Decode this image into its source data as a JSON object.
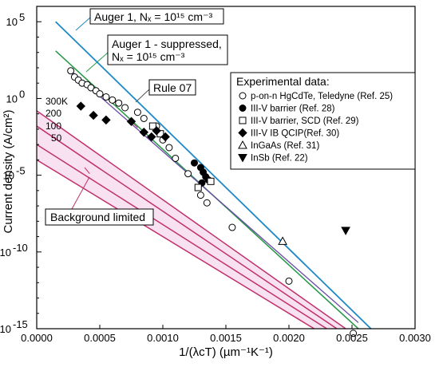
{
  "chart_data": {
    "type": "scatter",
    "xlabel": "1/(λcT) (µm⁻¹K⁻¹)",
    "ylabel": "Current density (A/cm²)",
    "xlim": [
      0.0,
      0.003
    ],
    "ylog_exponent_range": [
      -15,
      6
    ],
    "x_ticks": [
      "0.0000",
      "0.0005",
      "0.0010",
      "0.0015",
      "0.0020",
      "0.0025",
      "0.0030"
    ],
    "y_ticks": [
      {
        "base": "10",
        "exp": "5",
        "value_exp": 5
      },
      {
        "base": "10",
        "exp": "0",
        "value_exp": 0
      },
      {
        "base": "10",
        "exp": "-5",
        "value_exp": -5
      },
      {
        "base": "10",
        "exp": "-10",
        "value_exp": -10
      },
      {
        "base": "10",
        "exp": "-15",
        "value_exp": -15
      }
    ],
    "annotations": {
      "auger1": "Auger 1, Nₓ = 10¹⁵ cm⁻³",
      "auger1_suppressed_line1": "Auger 1 - suppressed,",
      "auger1_suppressed_line2": "Nₓ = 10¹⁵ cm⁻³",
      "rule07": "Rule 07",
      "background": "Background limited"
    },
    "temperature_labels": [
      "300K",
      "200",
      "100",
      "50"
    ],
    "legend": {
      "title": "Experimental data:",
      "entries": [
        {
          "marker": "circle-open",
          "label": "p-on-n HgCdTe, Teledyne (Ref. 25)"
        },
        {
          "marker": "circle-filled",
          "label": "III-V barrier (Ref. 28)"
        },
        {
          "marker": "square-open",
          "label": "III-V barrier, SCD (Ref. 29)"
        },
        {
          "marker": "diamond-filled",
          "label": "III-V IB QCIP(Ref. 30)"
        },
        {
          "marker": "triangle-open",
          "label": "InGaAs (Ref. 31)"
        },
        {
          "marker": "triangle-down-filled",
          "label": "InSb (Ref. 22)"
        }
      ]
    },
    "lines": {
      "auger1": {
        "x": [
          0.00015,
          0.00265
        ],
        "log_y": [
          5.0,
          -15.0
        ]
      },
      "auger1_suppressed": {
        "x": [
          0.00015,
          0.00255
        ],
        "log_y": [
          3.1,
          -15.0
        ]
      },
      "rule07": {
        "x": [
          0.00027,
          0.00255
        ],
        "log_y": [
          1.8,
          -14.6
        ]
      },
      "background": [
        {
          "label": "300K",
          "x": [
            0.0,
            0.00245
          ],
          "log_y": [
            -0.8,
            -15.0
          ]
        },
        {
          "label": "200",
          "x": [
            0.0,
            0.00238
          ],
          "log_y": [
            -1.8,
            -15.0
          ]
        },
        {
          "label": "100",
          "x": [
            0.0,
            0.0023
          ],
          "log_y": [
            -3.0,
            -15.0
          ]
        },
        {
          "label": "50",
          "x": [
            0.0,
            0.0022
          ],
          "log_y": [
            -4.0,
            -15.0
          ]
        }
      ]
    },
    "series": [
      {
        "marker": "circle-open",
        "x": [
          0.00027,
          0.0003,
          0.00033,
          0.00036,
          0.0004,
          0.00043,
          0.00047,
          0.0005,
          0.00055,
          0.0006,
          0.00065,
          0.0007,
          0.0008,
          0.00085,
          0.00095,
          0.001,
          0.00105,
          0.0011,
          0.0012,
          0.0013,
          0.00135,
          0.00155,
          0.002,
          0.00251
        ],
        "log_y": [
          1.8,
          1.4,
          1.2,
          1.0,
          0.9,
          0.7,
          0.5,
          0.3,
          0.1,
          -0.1,
          -0.3,
          -0.6,
          -0.9,
          -1.3,
          -1.8,
          -2.7,
          -3.2,
          -3.9,
          -4.9,
          -6.3,
          -6.8,
          -8.4,
          -11.9,
          -15.3
        ]
      },
      {
        "marker": "circle-filled",
        "x": [
          0.00125,
          0.0013,
          0.00132,
          0.00134,
          0.00136,
          0.00131
        ],
        "log_y": [
          -4.2,
          -4.5,
          -4.8,
          -5.1,
          -5.3,
          -5.5
        ]
      },
      {
        "marker": "square-open",
        "x": [
          0.00092,
          0.00098,
          0.00128,
          0.00138
        ],
        "log_y": [
          -1.8,
          -2.3,
          -5.8,
          -5.4
        ]
      },
      {
        "marker": "diamond-filled",
        "x": [
          0.00035,
          0.00045,
          0.00055,
          0.00075,
          0.00085,
          0.00091,
          0.00095,
          0.00102
        ],
        "log_y": [
          -0.5,
          -1.1,
          -1.4,
          -1.5,
          -2.2,
          -2.5,
          -2.1,
          -2.5
        ]
      },
      {
        "marker": "triangle-open",
        "x": [
          0.00195
        ],
        "log_y": [
          -9.3
        ]
      },
      {
        "marker": "triangle-down-filled",
        "x": [
          0.00245
        ],
        "log_y": [
          -8.6
        ]
      }
    ]
  }
}
